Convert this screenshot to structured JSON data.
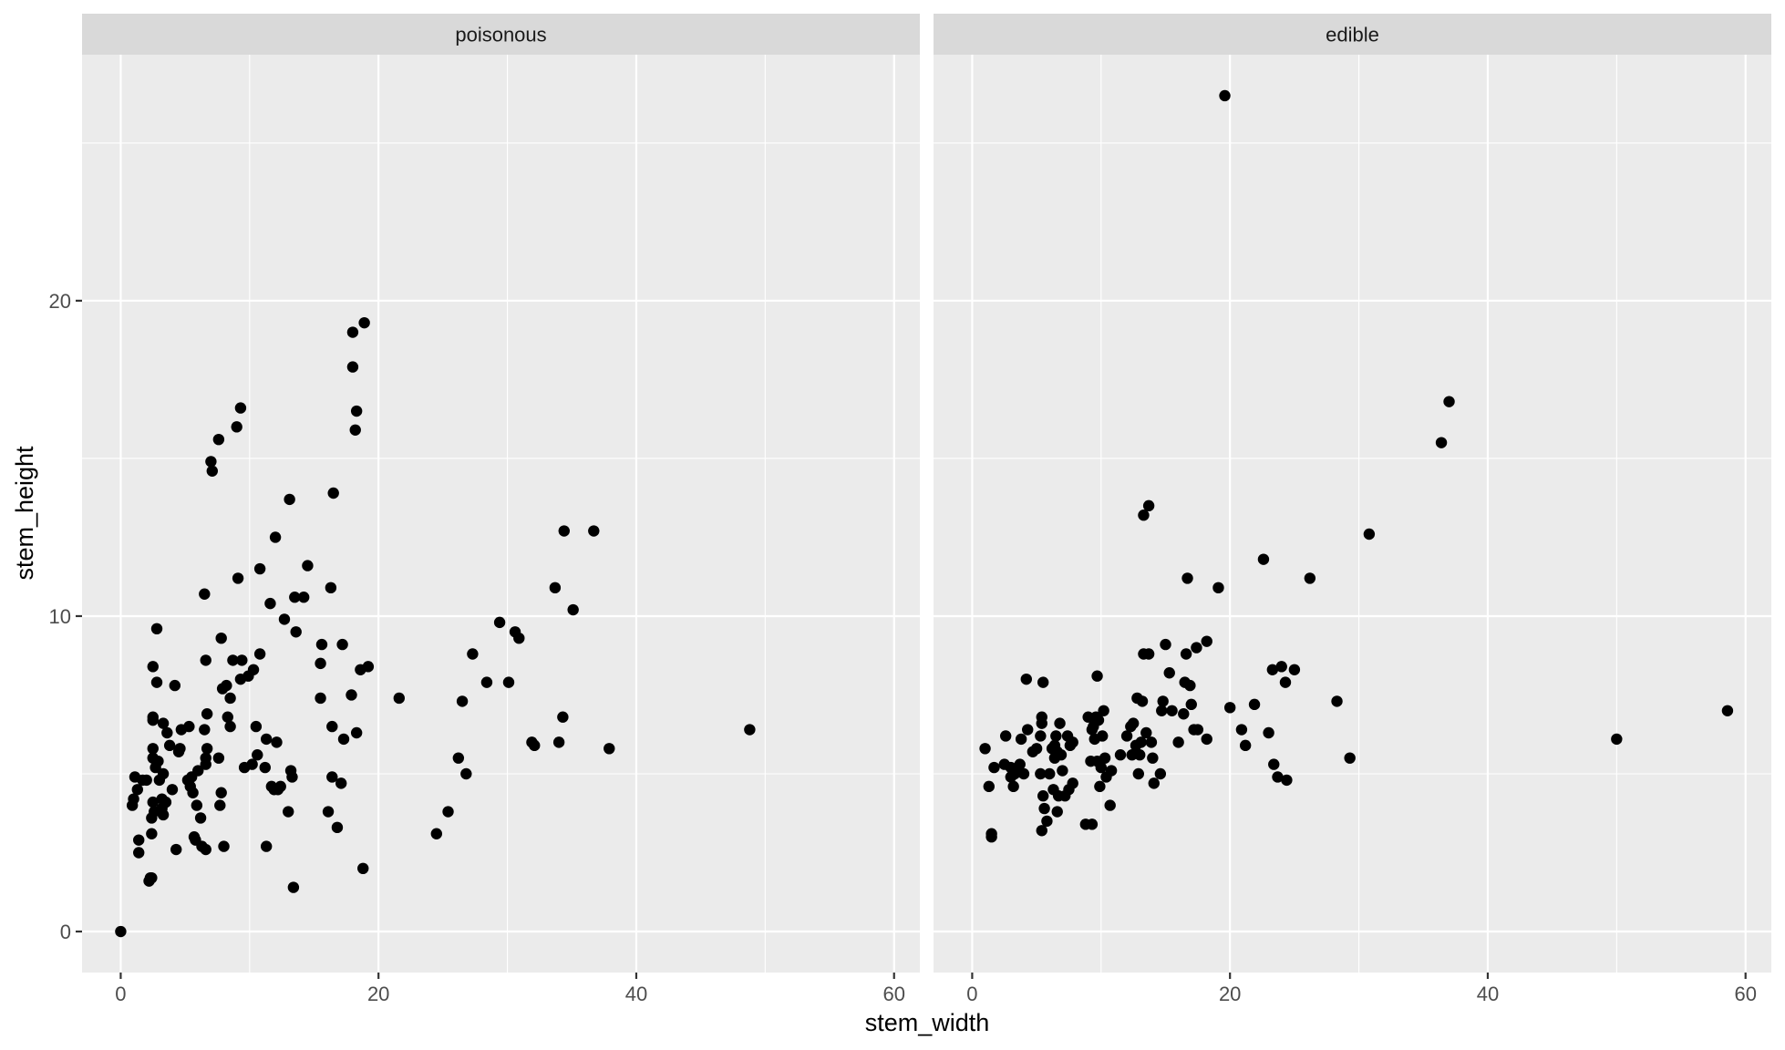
{
  "chart_data": {
    "type": "scatter",
    "xlabel": "stem_width",
    "ylabel": "stem_height",
    "xlim": [
      -3,
      62
    ],
    "ylim": [
      -1.3,
      27.8
    ],
    "x_ticks": [
      0,
      20,
      40,
      60
    ],
    "y_ticks": [
      0,
      10,
      20
    ],
    "x_tick_labels": [
      "0",
      "20",
      "40",
      "60"
    ],
    "y_tick_labels": [
      "0",
      "10",
      "20"
    ],
    "grid": true,
    "panels": [
      {
        "name": "poisonous",
        "points": [
          [
            0,
            0
          ],
          [
            0.9,
            4.0
          ],
          [
            1.0,
            4.2
          ],
          [
            1.1,
            4.9
          ],
          [
            1.3,
            4.5
          ],
          [
            1.4,
            2.5
          ],
          [
            1.4,
            2.9
          ],
          [
            1.7,
            4.8
          ],
          [
            2.0,
            4.8
          ],
          [
            2.2,
            1.6
          ],
          [
            2.3,
            1.7
          ],
          [
            2.4,
            1.7
          ],
          [
            2.4,
            3.6
          ],
          [
            2.4,
            3.1
          ],
          [
            2.5,
            4.1
          ],
          [
            2.5,
            5.8
          ],
          [
            2.5,
            5.5
          ],
          [
            2.5,
            6.8
          ],
          [
            2.5,
            6.7
          ],
          [
            2.5,
            8.4
          ],
          [
            2.6,
            3.8
          ],
          [
            2.7,
            5.2
          ],
          [
            2.8,
            7.9
          ],
          [
            2.8,
            9.6
          ],
          [
            2.9,
            5.4
          ],
          [
            3.0,
            4.8
          ],
          [
            3.2,
            3.9
          ],
          [
            3.2,
            4.2
          ],
          [
            3.3,
            3.7
          ],
          [
            3.3,
            6.6
          ],
          [
            3.3,
            5.0
          ],
          [
            3.5,
            4.1
          ],
          [
            3.6,
            6.3
          ],
          [
            3.8,
            5.9
          ],
          [
            4.0,
            4.5
          ],
          [
            4.2,
            7.8
          ],
          [
            4.3,
            2.6
          ],
          [
            4.5,
            5.7
          ],
          [
            4.6,
            5.8
          ],
          [
            4.7,
            6.4
          ],
          [
            5.2,
            4.8
          ],
          [
            5.3,
            6.5
          ],
          [
            5.4,
            4.6
          ],
          [
            5.5,
            4.9
          ],
          [
            5.6,
            4.4
          ],
          [
            5.7,
            3.0
          ],
          [
            5.8,
            2.9
          ],
          [
            5.9,
            4.0
          ],
          [
            6.0,
            5.1
          ],
          [
            6.2,
            3.6
          ],
          [
            6.3,
            2.7
          ],
          [
            6.5,
            6.4
          ],
          [
            6.5,
            10.7
          ],
          [
            6.6,
            2.6
          ],
          [
            6.6,
            5.3
          ],
          [
            6.6,
            5.5
          ],
          [
            6.6,
            8.6
          ],
          [
            6.7,
            6.9
          ],
          [
            6.7,
            5.8
          ],
          [
            7.0,
            14.9
          ],
          [
            7.1,
            14.6
          ],
          [
            7.6,
            15.6
          ],
          [
            7.6,
            5.5
          ],
          [
            7.7,
            4.0
          ],
          [
            7.8,
            4.4
          ],
          [
            7.8,
            9.3
          ],
          [
            7.9,
            7.7
          ],
          [
            8.0,
            2.7
          ],
          [
            8.2,
            7.8
          ],
          [
            8.3,
            6.8
          ],
          [
            8.5,
            6.5
          ],
          [
            8.5,
            7.4
          ],
          [
            8.7,
            8.6
          ],
          [
            9.0,
            16.0
          ],
          [
            9.1,
            11.2
          ],
          [
            9.3,
            8.0
          ],
          [
            9.3,
            16.6
          ],
          [
            9.4,
            8.6
          ],
          [
            9.6,
            5.2
          ],
          [
            9.9,
            8.1
          ],
          [
            10.2,
            5.3
          ],
          [
            10.3,
            8.3
          ],
          [
            10.5,
            6.5
          ],
          [
            10.6,
            5.6
          ],
          [
            10.8,
            8.8
          ],
          [
            10.8,
            11.5
          ],
          [
            11.2,
            5.2
          ],
          [
            11.3,
            2.7
          ],
          [
            11.3,
            6.1
          ],
          [
            11.6,
            10.4
          ],
          [
            11.7,
            4.6
          ],
          [
            11.9,
            4.5
          ],
          [
            12.0,
            12.5
          ],
          [
            12.1,
            6.0
          ],
          [
            12.2,
            4.5
          ],
          [
            12.4,
            4.6
          ],
          [
            12.7,
            9.9
          ],
          [
            13.0,
            3.8
          ],
          [
            13.1,
            13.7
          ],
          [
            13.2,
            5.1
          ],
          [
            13.3,
            4.9
          ],
          [
            13.4,
            1.4
          ],
          [
            13.5,
            10.6
          ],
          [
            13.6,
            9.5
          ],
          [
            14.2,
            10.6
          ],
          [
            14.5,
            11.6
          ],
          [
            15.5,
            8.5
          ],
          [
            15.5,
            7.4
          ],
          [
            15.6,
            9.1
          ],
          [
            16.1,
            3.8
          ],
          [
            16.3,
            10.9
          ],
          [
            16.4,
            6.5
          ],
          [
            16.4,
            4.9
          ],
          [
            16.5,
            13.9
          ],
          [
            16.8,
            3.3
          ],
          [
            17.1,
            4.7
          ],
          [
            17.2,
            9.1
          ],
          [
            17.3,
            6.1
          ],
          [
            17.9,
            7.5
          ],
          [
            18.0,
            17.9
          ],
          [
            18.0,
            19.0
          ],
          [
            18.2,
            15.9
          ],
          [
            18.3,
            16.5
          ],
          [
            18.3,
            6.3
          ],
          [
            18.6,
            8.3
          ],
          [
            18.8,
            2.0
          ],
          [
            18.9,
            19.3
          ],
          [
            19.2,
            8.4
          ],
          [
            21.6,
            7.4
          ],
          [
            24.5,
            3.1
          ],
          [
            25.4,
            3.8
          ],
          [
            26.2,
            5.5
          ],
          [
            26.5,
            7.3
          ],
          [
            26.8,
            5.0
          ],
          [
            27.3,
            8.8
          ],
          [
            28.4,
            7.9
          ],
          [
            29.4,
            9.8
          ],
          [
            30.1,
            7.9
          ],
          [
            30.6,
            9.5
          ],
          [
            30.9,
            9.3
          ],
          [
            31.9,
            6.0
          ],
          [
            32.1,
            5.9
          ],
          [
            33.7,
            10.9
          ],
          [
            34.0,
            6.0
          ],
          [
            34.3,
            6.8
          ],
          [
            34.4,
            12.7
          ],
          [
            35.1,
            10.2
          ],
          [
            36.7,
            12.7
          ],
          [
            37.9,
            5.8
          ],
          [
            48.8,
            6.4
          ]
        ]
      },
      {
        "name": "edible",
        "points": [
          [
            1.0,
            5.8
          ],
          [
            1.3,
            4.6
          ],
          [
            1.5,
            3.0
          ],
          [
            1.5,
            3.1
          ],
          [
            1.7,
            5.2
          ],
          [
            2.5,
            5.3
          ],
          [
            2.6,
            6.2
          ],
          [
            3.0,
            4.9
          ],
          [
            3.0,
            5.2
          ],
          [
            3.2,
            4.6
          ],
          [
            3.3,
            5.0
          ],
          [
            3.5,
            5.1
          ],
          [
            3.7,
            5.3
          ],
          [
            3.8,
            6.1
          ],
          [
            4.0,
            5.0
          ],
          [
            4.2,
            8.0
          ],
          [
            4.3,
            6.4
          ],
          [
            4.7,
            5.7
          ],
          [
            5.0,
            5.8
          ],
          [
            5.3,
            6.2
          ],
          [
            5.3,
            5.0
          ],
          [
            5.4,
            6.6
          ],
          [
            5.4,
            6.8
          ],
          [
            5.5,
            7.9
          ],
          [
            5.4,
            3.2
          ],
          [
            5.5,
            4.3
          ],
          [
            5.6,
            3.9
          ],
          [
            5.8,
            3.5
          ],
          [
            6.0,
            5.0
          ],
          [
            6.2,
            5.8
          ],
          [
            6.3,
            4.5
          ],
          [
            6.4,
            5.5
          ],
          [
            6.4,
            5.9
          ],
          [
            6.5,
            6.2
          ],
          [
            6.6,
            5.7
          ],
          [
            6.6,
            3.8
          ],
          [
            6.7,
            4.3
          ],
          [
            6.8,
            6.6
          ],
          [
            6.9,
            5.6
          ],
          [
            7.0,
            5.1
          ],
          [
            7.2,
            4.3
          ],
          [
            7.4,
            6.2
          ],
          [
            7.6,
            5.9
          ],
          [
            7.5,
            4.5
          ],
          [
            7.8,
            6.0
          ],
          [
            7.8,
            4.7
          ],
          [
            8.8,
            3.4
          ],
          [
            9.0,
            6.8
          ],
          [
            9.2,
            5.4
          ],
          [
            9.3,
            6.4
          ],
          [
            9.3,
            3.4
          ],
          [
            9.4,
            6.5
          ],
          [
            9.5,
            6.1
          ],
          [
            9.6,
            6.8
          ],
          [
            9.7,
            5.4
          ],
          [
            9.7,
            8.1
          ],
          [
            9.8,
            6.7
          ],
          [
            9.9,
            4.6
          ],
          [
            10.0,
            5.2
          ],
          [
            10.1,
            6.2
          ],
          [
            10.2,
            7.0
          ],
          [
            10.3,
            5.5
          ],
          [
            10.4,
            4.9
          ],
          [
            10.7,
            4.0
          ],
          [
            10.8,
            5.1
          ],
          [
            11.5,
            5.6
          ],
          [
            12.0,
            6.2
          ],
          [
            12.3,
            6.5
          ],
          [
            12.4,
            5.6
          ],
          [
            12.5,
            6.6
          ],
          [
            12.7,
            5.9
          ],
          [
            12.8,
            7.4
          ],
          [
            12.9,
            5.0
          ],
          [
            13.0,
            5.6
          ],
          [
            13.1,
            6.0
          ],
          [
            13.2,
            7.3
          ],
          [
            13.3,
            8.8
          ],
          [
            13.3,
            13.2
          ],
          [
            13.5,
            6.3
          ],
          [
            13.7,
            8.8
          ],
          [
            13.7,
            13.5
          ],
          [
            13.9,
            6.0
          ],
          [
            14.0,
            5.5
          ],
          [
            14.1,
            4.7
          ],
          [
            14.6,
            5.0
          ],
          [
            14.7,
            7.0
          ],
          [
            14.8,
            7.3
          ],
          [
            15.0,
            9.1
          ],
          [
            15.3,
            8.2
          ],
          [
            15.5,
            7.0
          ],
          [
            16.0,
            6.0
          ],
          [
            16.4,
            6.9
          ],
          [
            16.5,
            7.9
          ],
          [
            16.6,
            8.8
          ],
          [
            16.7,
            11.2
          ],
          [
            16.9,
            7.8
          ],
          [
            17.0,
            7.2
          ],
          [
            17.2,
            6.4
          ],
          [
            17.4,
            9.0
          ],
          [
            17.5,
            6.4
          ],
          [
            18.2,
            6.1
          ],
          [
            18.2,
            9.2
          ],
          [
            19.1,
            10.9
          ],
          [
            19.6,
            26.5
          ],
          [
            20.0,
            7.1
          ],
          [
            20.9,
            6.4
          ],
          [
            21.2,
            5.9
          ],
          [
            21.9,
            7.2
          ],
          [
            22.6,
            11.8
          ],
          [
            23.0,
            6.3
          ],
          [
            23.3,
            8.3
          ],
          [
            23.4,
            5.3
          ],
          [
            23.7,
            4.9
          ],
          [
            24.0,
            8.4
          ],
          [
            24.3,
            7.9
          ],
          [
            24.4,
            4.8
          ],
          [
            25.0,
            8.3
          ],
          [
            26.2,
            11.2
          ],
          [
            28.3,
            7.3
          ],
          [
            29.3,
            5.5
          ],
          [
            30.8,
            12.6
          ],
          [
            36.4,
            15.5
          ],
          [
            37.0,
            16.8
          ],
          [
            50.0,
            6.1
          ],
          [
            58.6,
            7.0
          ]
        ]
      }
    ]
  }
}
